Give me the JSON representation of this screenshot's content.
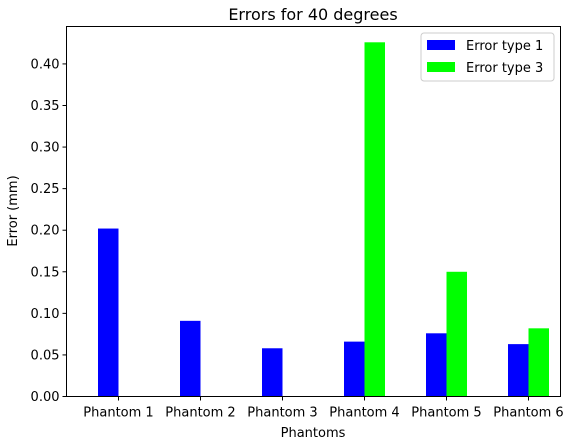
{
  "chart_data": {
    "type": "bar",
    "title": "Errors for 40 degrees",
    "xlabel": "Phantoms",
    "ylabel": "Error (mm)",
    "categories": [
      "Phantom 1",
      "Phantom 2",
      "Phantom 3",
      "Phantom 4",
      "Phantom 5",
      "Phantom 6"
    ],
    "series": [
      {
        "name": "Error type 1",
        "color": "#0000ff",
        "values": [
          0.202,
          0.091,
          0.058,
          0.066,
          0.076,
          0.063
        ]
      },
      {
        "name": "Error type 3",
        "color": "#00ff00",
        "values": [
          0.0,
          0.0,
          0.0,
          0.426,
          0.15,
          0.082
        ]
      }
    ],
    "ylim": [
      0,
      0.445
    ],
    "yticks": [
      0.0,
      0.05,
      0.1,
      0.15,
      0.2,
      0.25,
      0.3,
      0.35,
      0.4
    ],
    "ytick_labels": [
      "0.00",
      "0.05",
      "0.10",
      "0.15",
      "0.20",
      "0.25",
      "0.30",
      "0.35",
      "0.40"
    ],
    "grid": false,
    "legend_position": "top-right"
  }
}
